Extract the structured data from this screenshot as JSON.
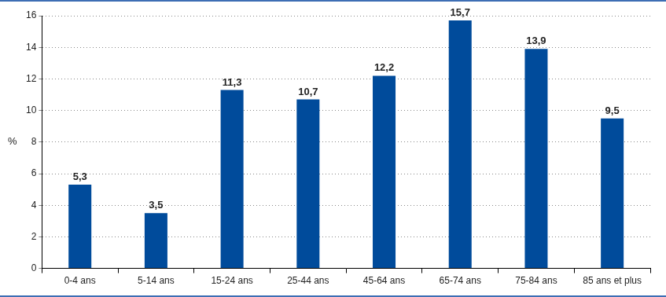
{
  "chart_data": {
    "type": "bar",
    "categories": [
      "0-4 ans",
      "5-14 ans",
      "15-24 ans",
      "25-44 ans",
      "45-64 ans",
      "65-74 ans",
      "75-84 ans",
      "85 ans et plus"
    ],
    "values": [
      5.3,
      3.5,
      11.3,
      10.7,
      12.2,
      15.7,
      13.9,
      9.5
    ],
    "value_labels": [
      "5,3",
      "3,5",
      "11,3",
      "10,7",
      "12,2",
      "15,7",
      "13,9",
      "9,5"
    ],
    "color": "#004b9b",
    "ylabel": "%",
    "ylim": [
      0,
      16
    ],
    "yticks": [
      0,
      2,
      4,
      6,
      8,
      10,
      12,
      14,
      16
    ],
    "grid": true,
    "data_labels": true
  }
}
